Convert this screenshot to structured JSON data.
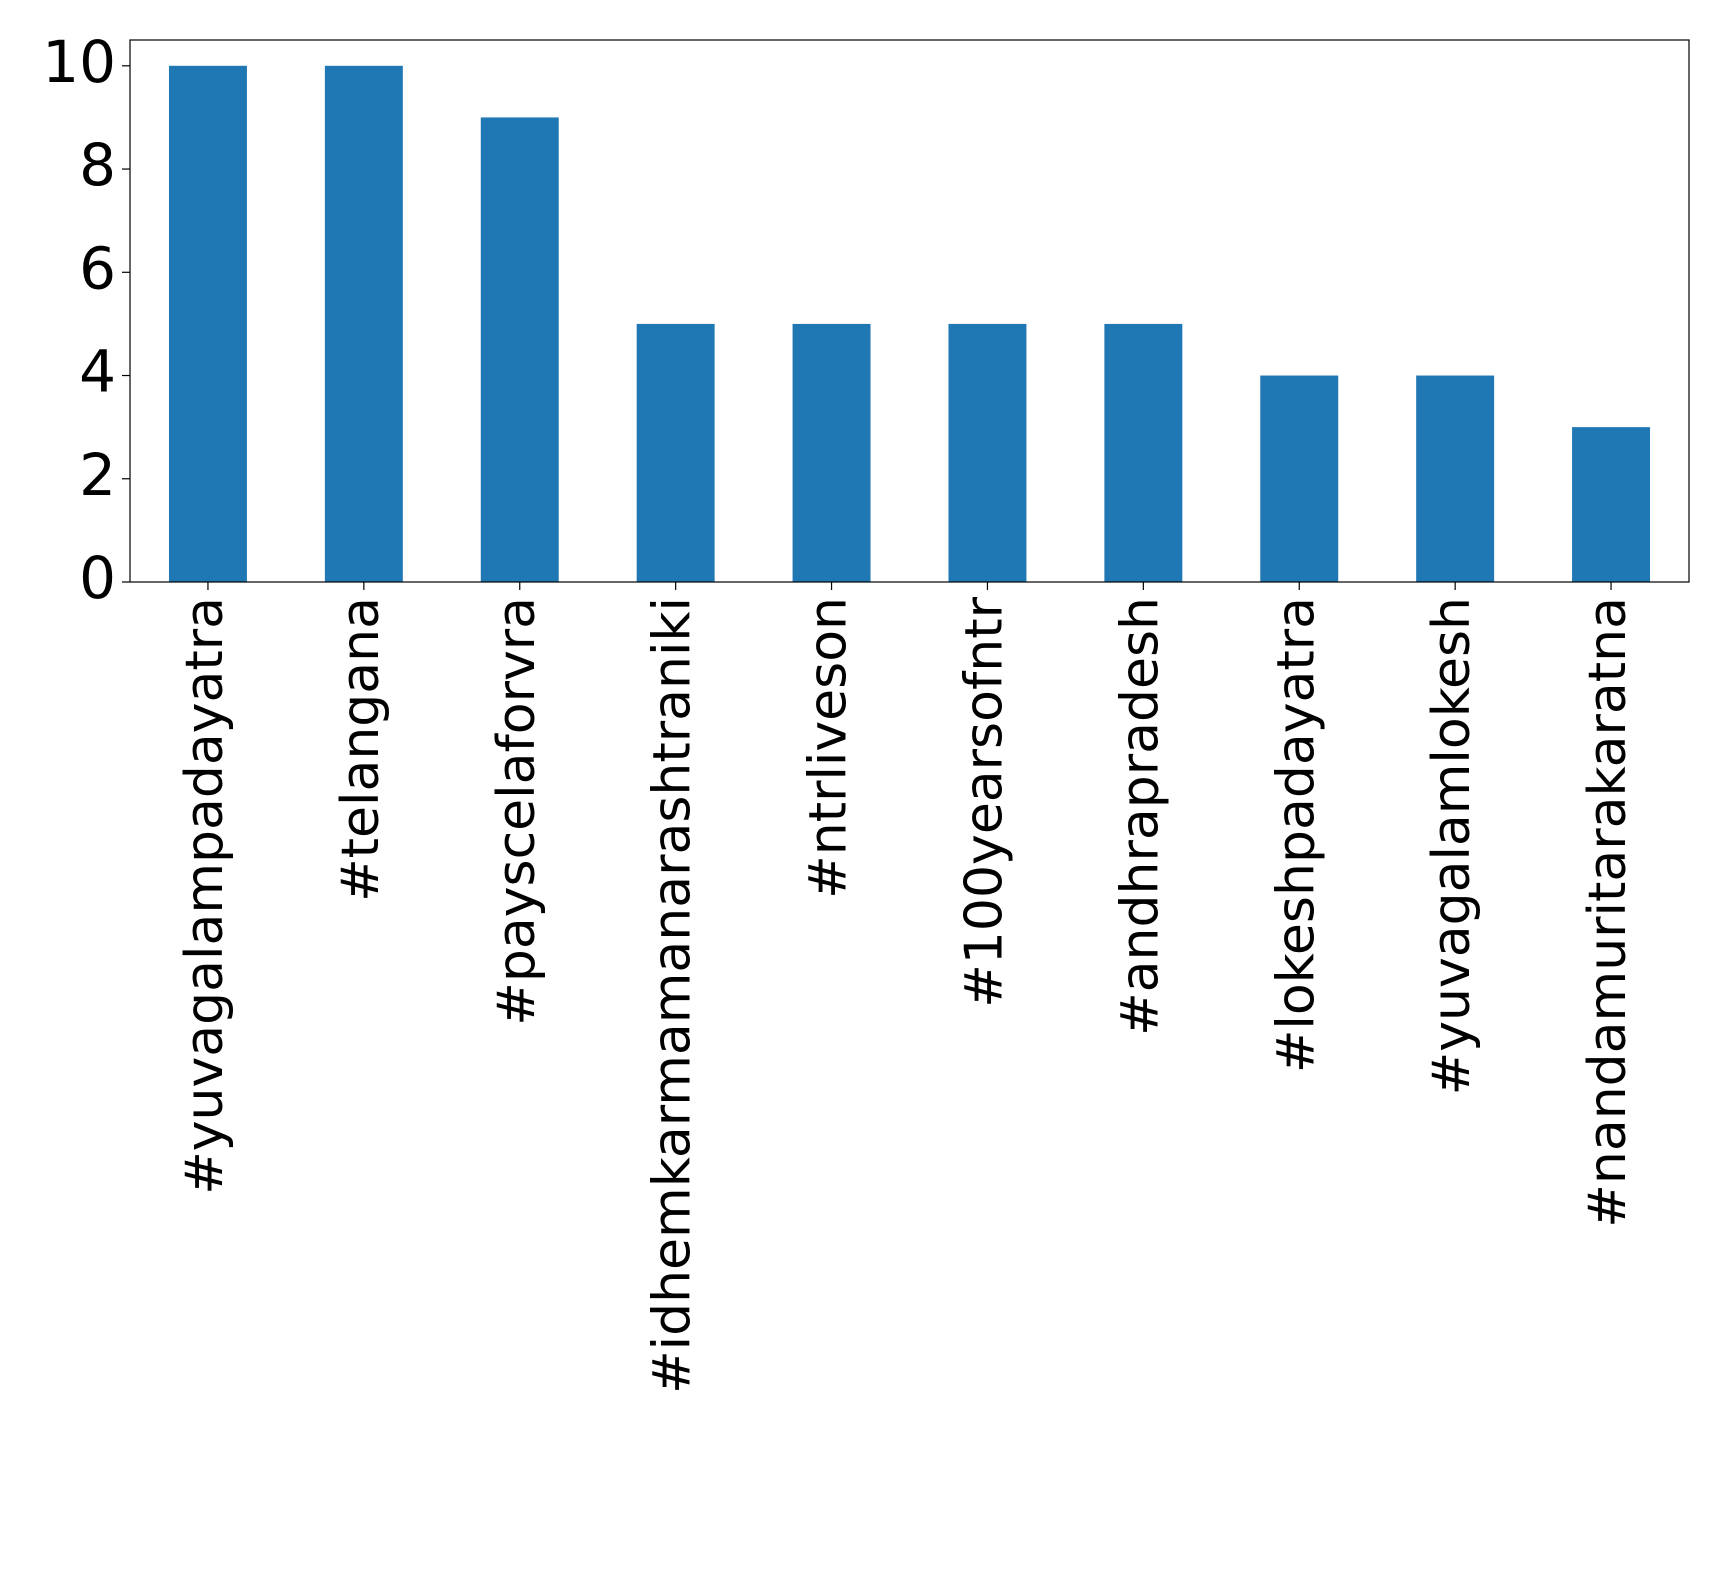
{
  "chart_data": {
    "type": "bar",
    "categories": [
      "#yuvagalampadayatra",
      "#telangana",
      "#payscelaforvra",
      "#idhemkarmamanarashtraniki",
      "#ntrliveson",
      "#100yearsofntr",
      "#andhrapradesh",
      "#lokeshpadayatra",
      "#yuvagalamlokesh",
      "#nandamuritarakaratna"
    ],
    "values": [
      10,
      10,
      9,
      5,
      5,
      5,
      5,
      4,
      4,
      3
    ],
    "yticks": [
      "0",
      "2",
      "4",
      "6",
      "8",
      "10"
    ],
    "ylim": [
      0,
      10.5
    ],
    "title": "",
    "xlabel": "",
    "ylabel": "",
    "grid": false,
    "legend": "none",
    "bar_color": "#1f77b4"
  }
}
